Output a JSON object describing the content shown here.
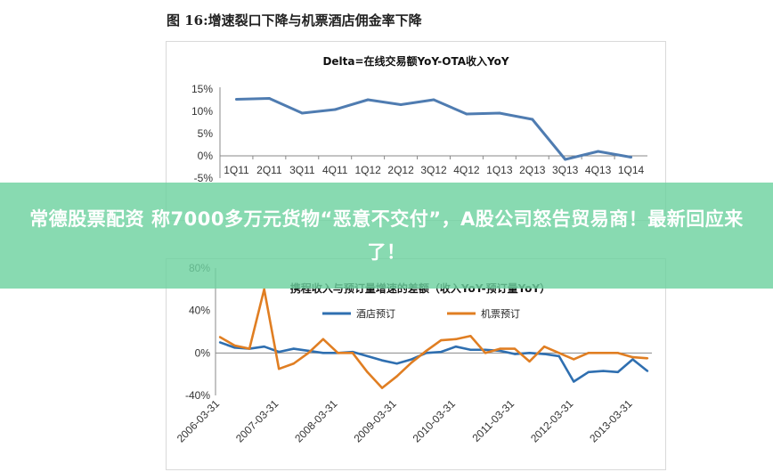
{
  "figure_title": "图 16:增速裂口下降与机票酒店佣金率下降",
  "banner": {
    "text": "常德股票配资 称7000多万元货物“恶意不交付”，A股公司怒告贸易商！最新回应来了！"
  },
  "chart_data": [
    {
      "type": "line",
      "title": "Delta=在线交易额YoY-OTA收入YoY",
      "categories": [
        "1Q11",
        "2Q11",
        "3Q11",
        "4Q11",
        "1Q12",
        "2Q12",
        "3Q12",
        "4Q12",
        "1Q13",
        "2Q13",
        "3Q13",
        "4Q13",
        "1Q14"
      ],
      "y_ticks": [
        "15%",
        "10%",
        "5%",
        "0%",
        "-5%"
      ],
      "ylim": [
        -5,
        15
      ],
      "color": "#4f7cb1",
      "series": [
        {
          "name": "",
          "values": [
            12.7,
            12.9,
            9.6,
            10.4,
            12.6,
            11.5,
            12.6,
            9.4,
            9.6,
            8.2,
            -0.8,
            1.0,
            -0.3
          ]
        }
      ]
    },
    {
      "type": "line",
      "title": "携程收入与预订量增速的差额（收入YoY-预订量YoY）",
      "x_ticks": [
        "2006-03-31",
        "2007-03-31",
        "2008-03-31",
        "2009-03-31",
        "2010-03-31",
        "2011-03-31",
        "2012-03-31",
        "2013-03-31"
      ],
      "y_ticks": [
        "80%",
        "40%",
        "0%",
        "-40%"
      ],
      "ylim": [
        -40,
        80
      ],
      "series": [
        {
          "name": "酒店预订",
          "color": "#2f6fb0",
          "values": [
            10,
            5,
            4,
            6,
            1,
            4,
            2,
            0,
            0,
            1,
            -3,
            -7,
            -10,
            -6,
            0,
            1,
            6,
            3,
            3,
            2,
            -1,
            0,
            -1,
            -3,
            -27,
            -18,
            -17,
            -18,
            -6,
            -17
          ]
        },
        {
          "name": "机票预订",
          "color": "#e07e22",
          "values": [
            15,
            7,
            4,
            60,
            -15,
            -10,
            0,
            13,
            0,
            0,
            -18,
            -33,
            -22,
            -9,
            2,
            12,
            13,
            16,
            0,
            4,
            4,
            -8,
            6,
            0,
            -6,
            0,
            0,
            0,
            -4,
            -5
          ]
        }
      ]
    }
  ]
}
